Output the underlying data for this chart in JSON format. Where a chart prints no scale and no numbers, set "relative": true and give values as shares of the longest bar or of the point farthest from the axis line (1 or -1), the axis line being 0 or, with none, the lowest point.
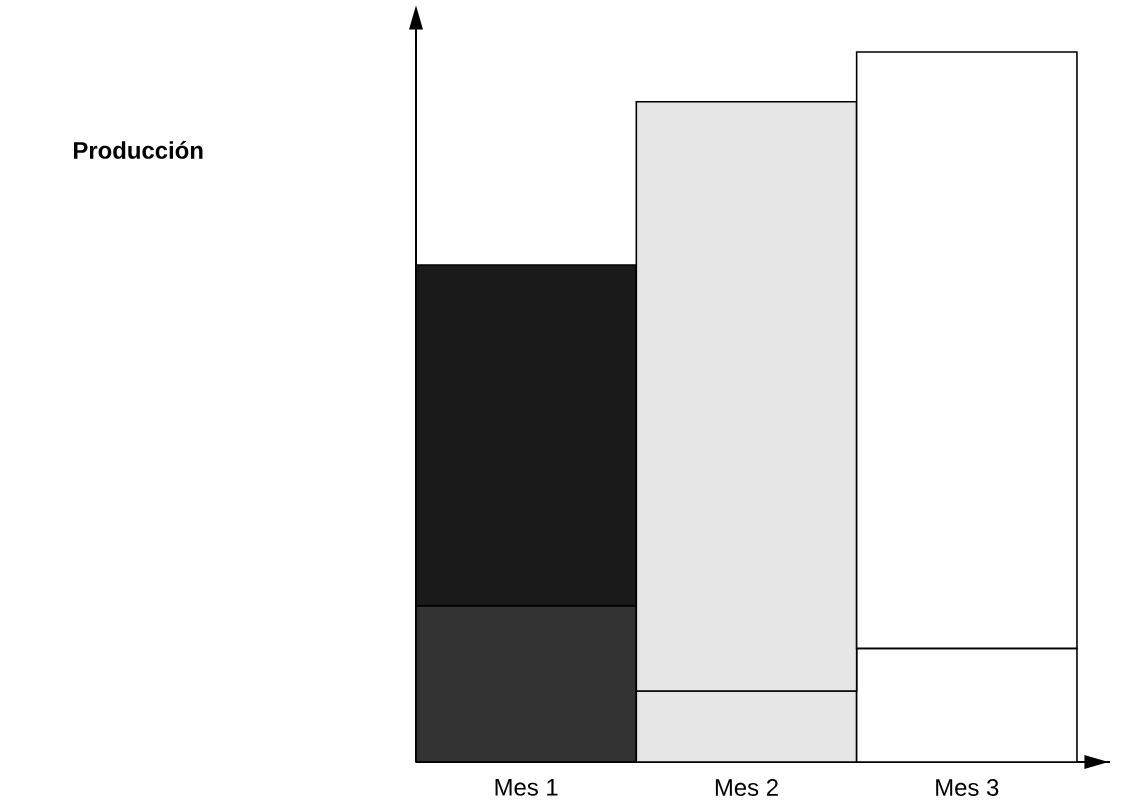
{
  "chart_data": {
    "type": "bar",
    "annotations": [
      "Producción"
    ],
    "categories": [
      "Mes 1",
      "Mes 2",
      "Mes 3"
    ],
    "relative": true,
    "stacked": true,
    "series": [
      {
        "colors": [
          "#333333",
          "#e6e6e6",
          "#ffffff"
        ],
        "values": [
          0.22,
          0.1,
          0.16
        ]
      },
      {
        "colors": [
          "#1a1a1a",
          "#e6e6e6",
          "#ffffff"
        ],
        "values": [
          0.48,
          0.83,
          0.84
        ]
      }
    ]
  }
}
